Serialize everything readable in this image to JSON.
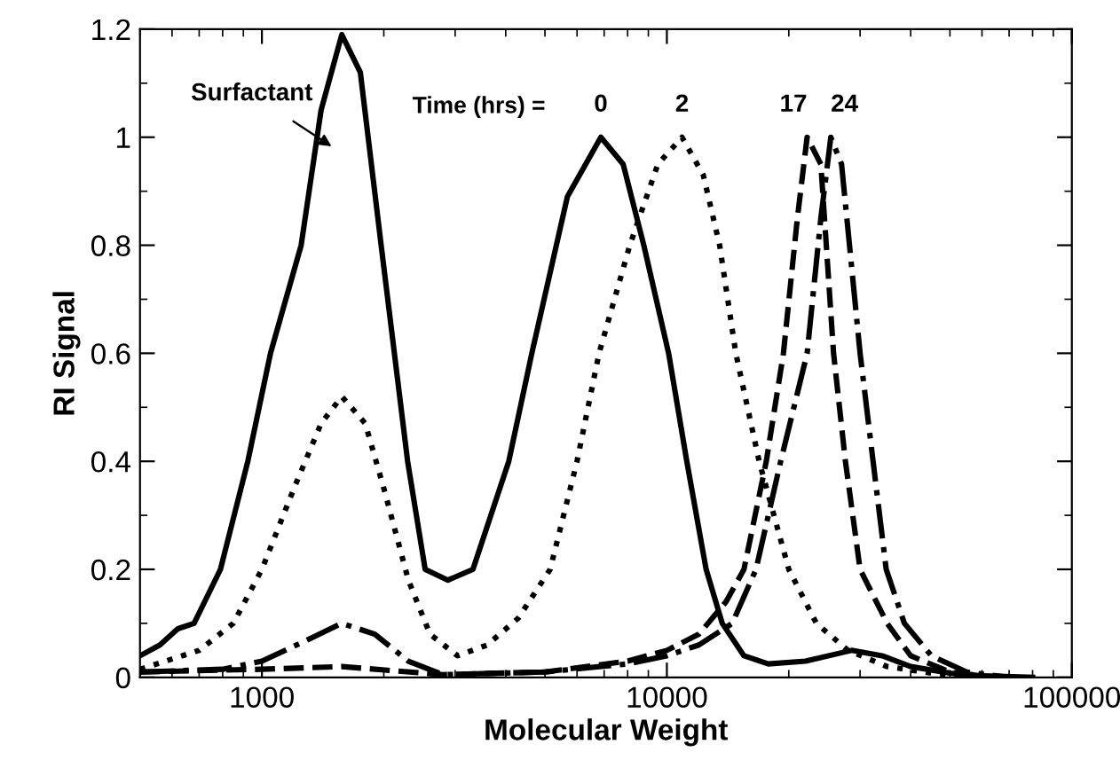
{
  "chart_data": {
    "type": "line",
    "xlabel": "Molecular Weight",
    "ylabel": "RI Signal",
    "log": "x",
    "grid": false,
    "legend": false,
    "marker": "none",
    "xlim": [
      500,
      100000
    ],
    "xticks": [
      1000,
      10000,
      100000
    ],
    "ylim": [
      0,
      1.2
    ],
    "yticks": [
      0,
      {
        "value": 0.1,
        "label": null
      },
      0.2,
      {
        "value": 0.3,
        "label": null
      },
      0.4,
      {
        "value": 0.5,
        "label": null
      },
      0.6,
      {
        "value": 0.7,
        "label": null
      },
      0.8,
      {
        "value": 0.9,
        "label": null
      },
      1,
      {
        "value": 1.1,
        "label": null
      },
      1.2
    ],
    "annotations": [
      "Surfactant",
      "Time (hrs) ="
    ],
    "series": [
      {
        "name": "0",
        "color": "#000000",
        "line_style": "solid",
        "x": [
          500,
          560,
          620,
          680,
          790,
          923,
          1050,
          1250,
          1400,
          1575,
          1750,
          1970,
          2290,
          2530,
          2880,
          3320,
          4070,
          4640,
          5680,
          6870,
          7800,
          8770,
          10100,
          11200,
          12500,
          13700,
          15500,
          17800,
          22000,
          28600,
          34000,
          40000,
          50000,
          60000,
          80000
        ],
        "values": [
          0.04,
          0.06,
          0.09,
          0.1,
          0.2,
          0.4,
          0.6,
          0.8,
          1.05,
          1.19,
          1.12,
          0.8,
          0.4,
          0.2,
          0.18,
          0.2,
          0.4,
          0.6,
          0.89,
          1.0,
          0.95,
          0.8,
          0.6,
          0.4,
          0.2,
          0.1,
          0.04,
          0.025,
          0.03,
          0.05,
          0.04,
          0.02,
          0.008,
          0.003,
          0
        ]
      },
      {
        "name": "2",
        "color": "#000000",
        "line_style": "dotted",
        "x": [
          500,
          700,
          850,
          1000,
          1200,
          1400,
          1575,
          1800,
          2000,
          2300,
          2600,
          3040,
          3600,
          4300,
          5150,
          6000,
          6800,
          8100,
          9500,
          10900,
          12300,
          13500,
          14800,
          16900,
          20000,
          23400,
          28000,
          35000,
          45000,
          60000
        ],
        "values": [
          0.015,
          0.05,
          0.1,
          0.2,
          0.35,
          0.47,
          0.52,
          0.47,
          0.35,
          0.18,
          0.08,
          0.04,
          0.06,
          0.11,
          0.2,
          0.4,
          0.6,
          0.8,
          0.95,
          1.0,
          0.93,
          0.8,
          0.6,
          0.4,
          0.2,
          0.1,
          0.05,
          0.02,
          0.008,
          0
        ]
      },
      {
        "name": "17",
        "color": "#000000",
        "line_style": "dashed",
        "x": [
          500,
          1000,
          1575,
          2800,
          5000,
          8000,
          10000,
          12000,
          14000,
          15500,
          17600,
          19400,
          21000,
          22200,
          24000,
          25800,
          27600,
          30000,
          35000,
          40000,
          50000,
          65000
        ],
        "values": [
          0.01,
          0.015,
          0.02,
          0.005,
          0.01,
          0.03,
          0.05,
          0.08,
          0.14,
          0.2,
          0.4,
          0.6,
          0.85,
          1.0,
          0.95,
          0.6,
          0.4,
          0.2,
          0.1,
          0.04,
          0.01,
          0
        ]
      },
      {
        "name": "24",
        "color": "#000000",
        "line_style": "dashdot",
        "x": [
          500,
          800,
          1000,
          1300,
          1575,
          1900,
          2300,
          2800,
          5000,
          8000,
          10000,
          12000,
          14500,
          16600,
          19100,
          22200,
          24000,
          25400,
          27000,
          30000,
          32300,
          34800,
          38600,
          45000,
          55000,
          70000
        ],
        "values": [
          0.01,
          0.015,
          0.03,
          0.07,
          0.1,
          0.08,
          0.03,
          0.005,
          0.01,
          0.025,
          0.04,
          0.06,
          0.1,
          0.2,
          0.4,
          0.6,
          0.85,
          1.0,
          0.95,
          0.6,
          0.4,
          0.2,
          0.1,
          0.04,
          0.01,
          0
        ]
      }
    ]
  }
}
